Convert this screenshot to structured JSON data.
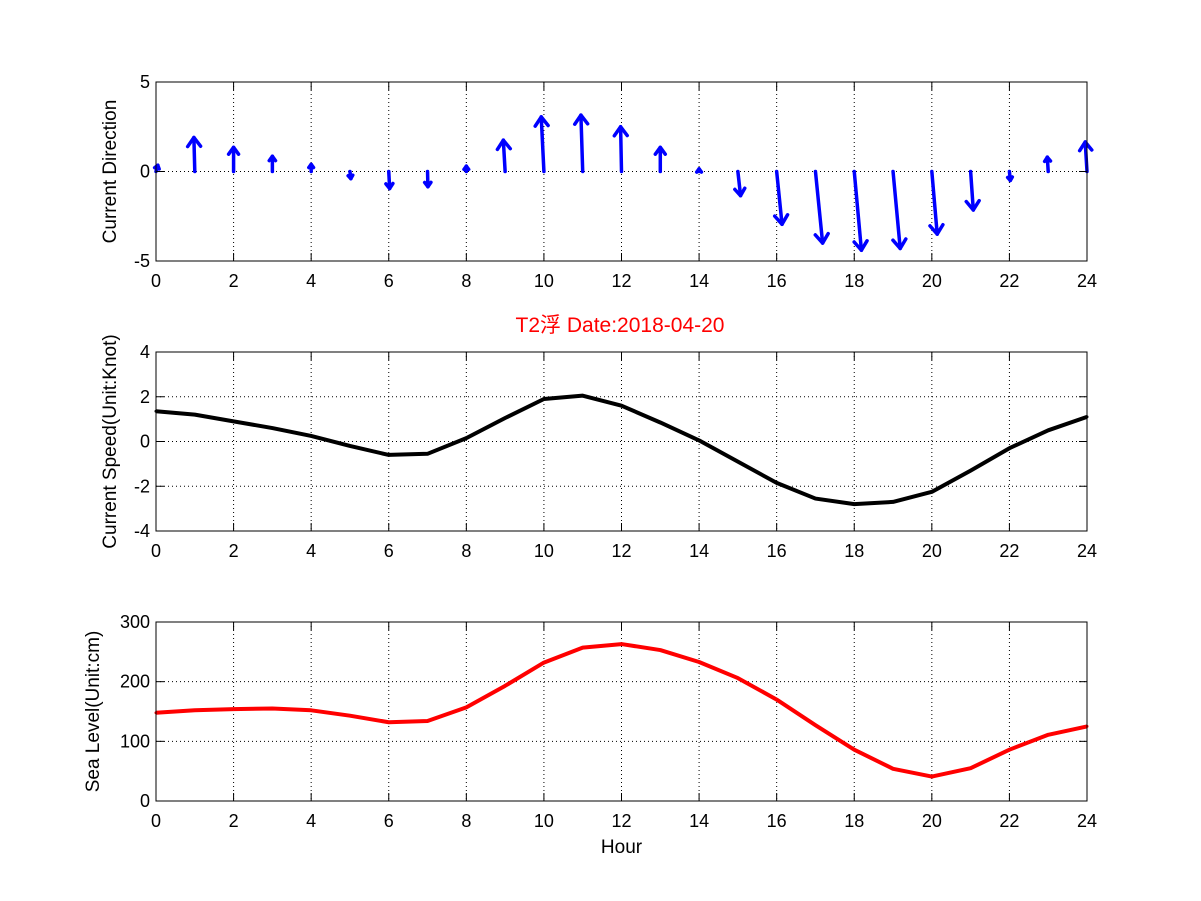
{
  "colors": {
    "direction": "#0000ff",
    "speed": "#000000",
    "sea_level": "#ff0000",
    "title": "#ff0000"
  },
  "title": "T2浮   Date:2018-04-20",
  "chart_data": [
    {
      "type": "quiver",
      "ylabel": "Current Direction",
      "xlabel": "",
      "xlim": [
        0,
        24
      ],
      "ylim": [
        -5,
        5
      ],
      "grid": true,
      "x": [
        0,
        1,
        2,
        3,
        4,
        5,
        6,
        7,
        8,
        9,
        10,
        11,
        12,
        13,
        14,
        15,
        16,
        17,
        18,
        19,
        20,
        21,
        22,
        23,
        24
      ],
      "u": [
        0.1,
        -0.05,
        0,
        0,
        0,
        0.05,
        0.05,
        0.02,
        0,
        -0.1,
        -0.15,
        -0.1,
        -0.05,
        0,
        0,
        0.15,
        0.3,
        0.4,
        0.4,
        0.4,
        0.3,
        0.15,
        0.05,
        -0.05,
        -0.1
      ],
      "v": [
        0.35,
        1.9,
        1.35,
        0.85,
        0.4,
        -0.4,
        -0.95,
        -0.85,
        0.3,
        1.75,
        3.05,
        3.15,
        2.5,
        1.35,
        0.15,
        -1.35,
        -2.95,
        -4.0,
        -4.4,
        -4.3,
        -3.5,
        -2.15,
        -0.5,
        0.8,
        1.65
      ]
    },
    {
      "type": "line",
      "ylabel": "Current Speed(Unit:Knot)",
      "xlabel": "",
      "xlim": [
        0,
        24
      ],
      "ylim": [
        -4,
        4
      ],
      "grid": true,
      "x": [
        0,
        1,
        2,
        3,
        4,
        5,
        6,
        7,
        8,
        9,
        10,
        11,
        12,
        13,
        14,
        15,
        16,
        17,
        18,
        19,
        20,
        21,
        22,
        23,
        24
      ],
      "values": [
        1.35,
        1.2,
        0.9,
        0.6,
        0.25,
        -0.2,
        -0.6,
        -0.55,
        0.15,
        1.05,
        1.9,
        2.05,
        1.6,
        0.85,
        0.05,
        -0.9,
        -1.85,
        -2.55,
        -2.8,
        -2.7,
        -2.25,
        -1.3,
        -0.3,
        0.5,
        1.1
      ]
    },
    {
      "type": "line",
      "ylabel": "Sea Level(Unit:cm)",
      "xlabel": "Hour",
      "xlim": [
        0,
        24
      ],
      "ylim": [
        0,
        300
      ],
      "grid": true,
      "x": [
        0,
        1,
        2,
        3,
        4,
        5,
        6,
        7,
        8,
        9,
        10,
        11,
        12,
        13,
        14,
        15,
        16,
        17,
        18,
        19,
        20,
        21,
        22,
        23,
        24
      ],
      "values": [
        148,
        152,
        154,
        155,
        152,
        143,
        132,
        134,
        157,
        193,
        232,
        257,
        263,
        253,
        233,
        206,
        170,
        127,
        86,
        54,
        41,
        55,
        86,
        111,
        125
      ]
    }
  ]
}
